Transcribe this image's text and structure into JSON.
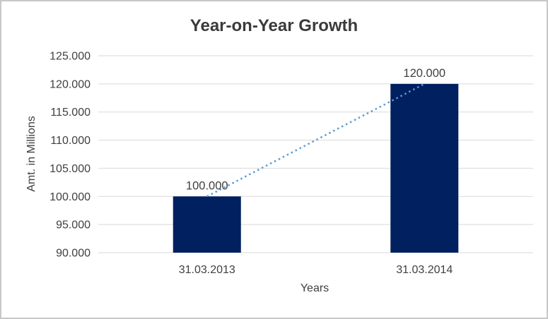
{
  "window": {
    "background_color": "#ffffff",
    "border_color": "#c8c8c8"
  },
  "chart_data": {
    "type": "bar",
    "title": "Year-on-Year Growth",
    "xlabel": "Years",
    "ylabel": "Amt. in Millions",
    "categories": [
      "31.03.2013",
      "31.03.2014"
    ],
    "values": [
      100000,
      120000
    ],
    "data_labels": [
      "100.000",
      "120.000"
    ],
    "y_axis": {
      "min": 90000,
      "max": 125000,
      "step": 5000,
      "tick_labels": [
        "90.000",
        "95.000",
        "100.000",
        "105.000",
        "110.000",
        "115.000",
        "120.000",
        "125.000"
      ]
    },
    "grid": true,
    "legend": false,
    "bar_color": "#002060",
    "gridline_color": "#d9d9d9",
    "text_color": "#404040",
    "title_color": "#3b3b3b",
    "trendline": {
      "style": "dotted",
      "color": "#5b9bd5"
    }
  }
}
